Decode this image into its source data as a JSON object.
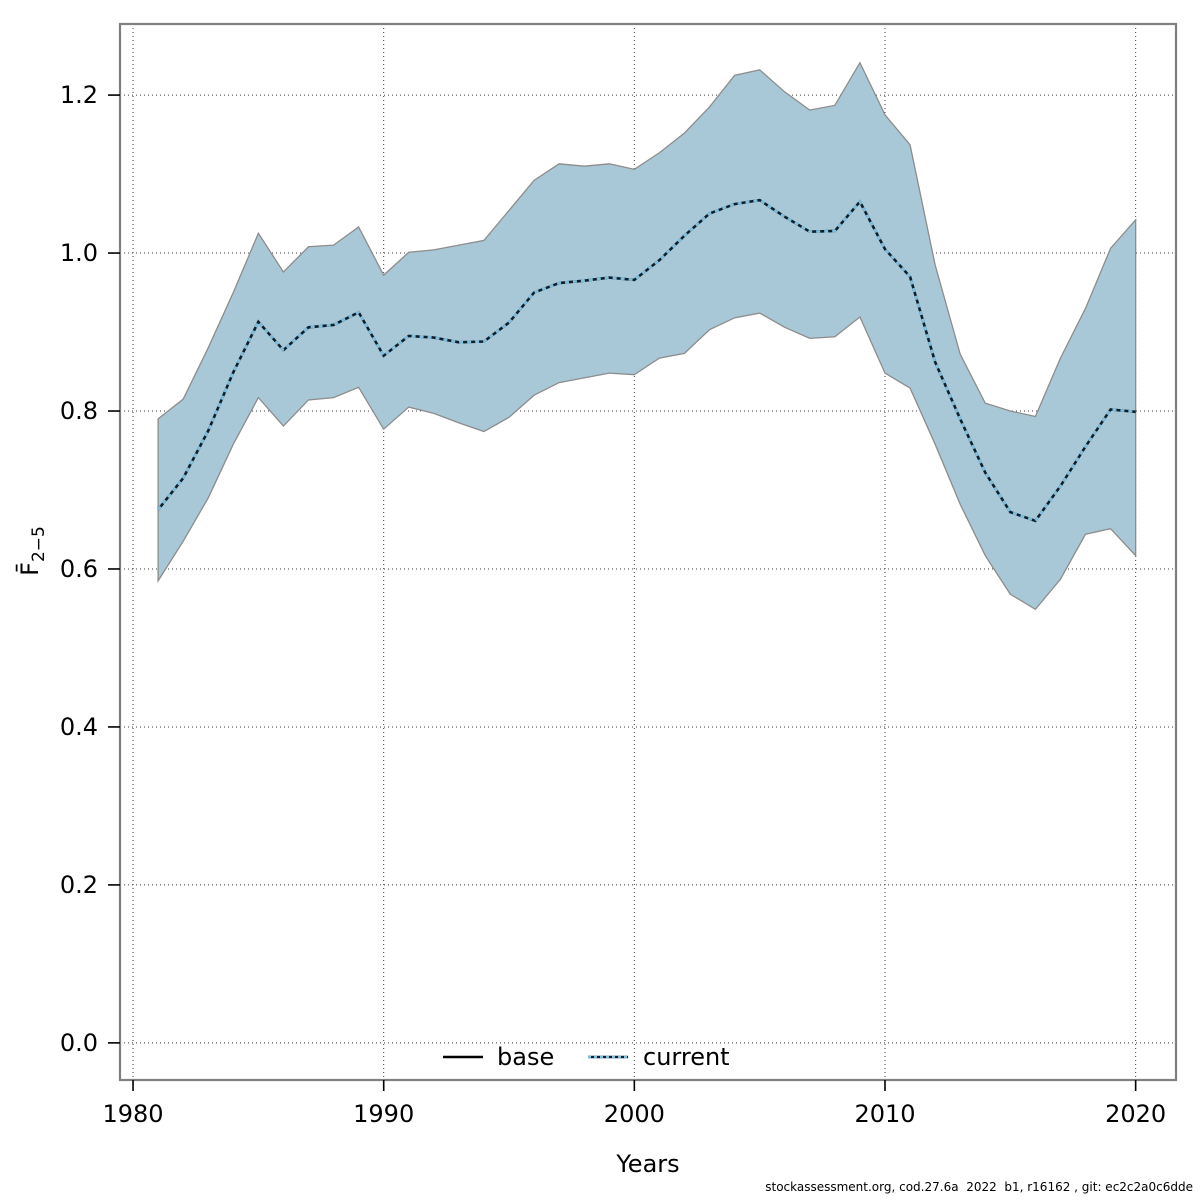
{
  "figure": {
    "footer": "stockassessment.org, cod.27.6a  2022  b1, r16162 , git: ec2c2a0c6dde"
  },
  "chart_data": {
    "type": "line",
    "title": "",
    "xlabel": "Years",
    "ylabel": {
      "main": "F̄",
      "sub": "2−5"
    },
    "grid": true,
    "legend_position": "bottom-center-inside",
    "legend": [
      {
        "label": "base",
        "style": "solid",
        "color": "#000000"
      },
      {
        "label": "current",
        "style": "dashed",
        "color": "#7fbfdf"
      }
    ],
    "base_series_note": "solid black base line coincides with (is hidden beneath) the current line",
    "xlim": [
      1979.48,
      2021.61
    ],
    "ylim": [
      -0.047,
      1.29
    ],
    "xticks": [
      1980,
      1990,
      2000,
      2010,
      2020
    ],
    "xticklabels": [
      "1980",
      "1990",
      "2000",
      "2010",
      "2020"
    ],
    "yticks": [
      0.0,
      0.2,
      0.4,
      0.6,
      0.8,
      1.0,
      1.2
    ],
    "yticklabels": [
      "0.0",
      "0.2",
      "0.4",
      "0.6",
      "0.8",
      "1.0",
      "1.2"
    ],
    "years": [
      1981,
      1982,
      1983,
      1984,
      1985,
      1986,
      1987,
      1988,
      1989,
      1990,
      1991,
      1992,
      1993,
      1994,
      1995,
      1996,
      1997,
      1998,
      1999,
      2000,
      2001,
      2002,
      2003,
      2004,
      2005,
      2006,
      2007,
      2008,
      2009,
      2010,
      2011,
      2012,
      2013,
      2014,
      2015,
      2016,
      2017,
      2018,
      2019,
      2020
    ],
    "series": [
      {
        "name": "current",
        "values": [
          0.675,
          0.715,
          0.775,
          0.849,
          0.913,
          0.877,
          0.906,
          0.909,
          0.925,
          0.87,
          0.895,
          0.893,
          0.887,
          0.888,
          0.912,
          0.95,
          0.962,
          0.965,
          0.969,
          0.966,
          0.991,
          1.022,
          1.05,
          1.062,
          1.067,
          1.046,
          1.027,
          1.028,
          1.065,
          1.005,
          0.97,
          0.862,
          0.79,
          0.722,
          0.672,
          0.661,
          0.705,
          0.755,
          0.802,
          0.799
        ]
      }
    ],
    "band": {
      "name": "confidence-band",
      "lower": [
        0.585,
        0.635,
        0.69,
        0.758,
        0.817,
        0.781,
        0.814,
        0.817,
        0.83,
        0.777,
        0.805,
        0.797,
        0.785,
        0.774,
        0.792,
        0.82,
        0.836,
        0.842,
        0.848,
        0.846,
        0.867,
        0.873,
        0.903,
        0.918,
        0.924,
        0.906,
        0.892,
        0.894,
        0.919,
        0.848,
        0.829,
        0.758,
        0.682,
        0.617,
        0.568,
        0.549,
        0.587,
        0.644,
        0.651,
        0.617
      ],
      "upper": [
        0.79,
        0.815,
        0.88,
        0.95,
        1.025,
        0.976,
        1.008,
        1.01,
        1.033,
        0.972,
        1.001,
        1.004,
        1.01,
        1.016,
        1.054,
        1.092,
        1.113,
        1.11,
        1.113,
        1.106,
        1.127,
        1.152,
        1.185,
        1.225,
        1.232,
        1.204,
        1.181,
        1.187,
        1.241,
        1.175,
        1.137,
        0.985,
        0.872,
        0.81,
        0.8,
        0.793,
        0.867,
        0.93,
        1.006,
        1.042
      ]
    },
    "colors": {
      "band_fill": "#a9c8d7",
      "band_edge": "#8c8c8c",
      "current_dash": "#7fbfdf",
      "current_underlay": "#0d1f2b",
      "base_line": "#000000",
      "grid": "#3c3c3c",
      "border": "#7f7f7f",
      "text": "#000000"
    }
  }
}
